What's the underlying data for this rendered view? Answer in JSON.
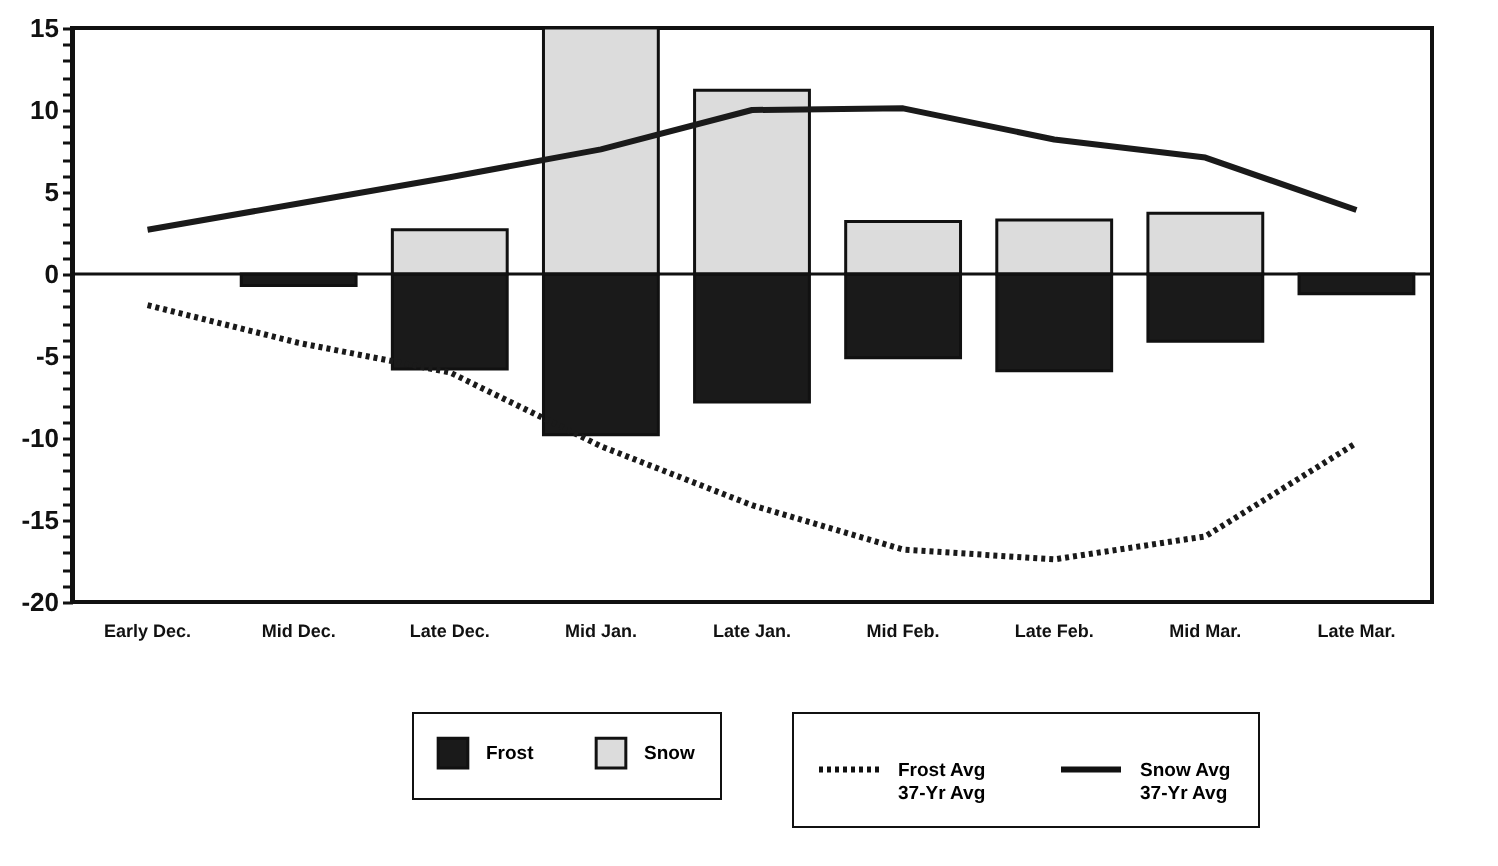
{
  "chart_data": {
    "type": "bar",
    "stacked": true,
    "categories": [
      "Early Dec.",
      "Mid Dec.",
      "Late Dec.",
      "Mid Jan.",
      "Late Jan.",
      "Mid Feb.",
      "Late Feb.",
      "Mid Mar.",
      "Late Mar."
    ],
    "series": [
      {
        "name": "Frost",
        "color": "#1a1a1a",
        "values": [
          null,
          -0.7,
          -5.8,
          -9.8,
          -7.8,
          -5.1,
          -5.9,
          -4.1,
          -1.2
        ]
      },
      {
        "name": "Snow",
        "color": "#dcdcdc",
        "values": [
          null,
          null,
          2.7,
          15,
          11.2,
          3.2,
          3.3,
          3.7,
          null
        ]
      },
      {
        "name": "Frost Avg\n37-Yr  Avg",
        "type": "line",
        "line_style": "dotted",
        "color": "#1a1a1a",
        "values": [
          -1.9,
          -4.2,
          -6.0,
          -10.5,
          -14.1,
          -16.8,
          -17.4,
          -16.0,
          -10.3
        ]
      },
      {
        "name": "Snow Avg\n37-Yr  Avg",
        "type": "line",
        "line_style": "solid",
        "color": "#1a1a1a",
        "values": [
          2.7,
          4.3,
          5.9,
          7.6,
          10.0,
          10.1,
          8.2,
          7.1,
          3.9
        ]
      }
    ],
    "ylim": [
      -20,
      15
    ],
    "yticks": [
      -20,
      {
        "value": -19,
        "label": null
      },
      {
        "value": -18,
        "label": null
      },
      {
        "value": -17,
        "label": null
      },
      {
        "value": -16,
        "label": null
      },
      -15,
      {
        "value": -14,
        "label": null
      },
      {
        "value": -13,
        "label": null
      },
      {
        "value": -12,
        "label": null
      },
      {
        "value": -11,
        "label": null
      },
      -10,
      {
        "value": -9,
        "label": null
      },
      {
        "value": -8,
        "label": null
      },
      {
        "value": -7,
        "label": null
      },
      {
        "value": -6,
        "label": null
      },
      -5,
      {
        "value": -4,
        "label": null
      },
      {
        "value": -3,
        "label": null
      },
      {
        "value": -2,
        "label": null
      },
      {
        "value": -1,
        "label": null
      },
      0,
      {
        "value": 1,
        "label": null
      },
      {
        "value": 2,
        "label": null
      },
      {
        "value": 3,
        "label": null
      },
      {
        "value": 4,
        "label": null
      },
      5,
      {
        "value": 6,
        "label": null
      },
      {
        "value": 7,
        "label": null
      },
      {
        "value": 8,
        "label": null
      },
      {
        "value": 9,
        "label": null
      },
      10,
      {
        "value": 11,
        "label": null
      },
      {
        "value": 12,
        "label": null
      },
      {
        "value": 13,
        "label": null
      },
      {
        "value": 14,
        "label": null
      },
      15
    ],
    "ref_lines": [
      {
        "axis": "y",
        "value": 0
      }
    ],
    "legend": "bottom",
    "grid": false
  }
}
